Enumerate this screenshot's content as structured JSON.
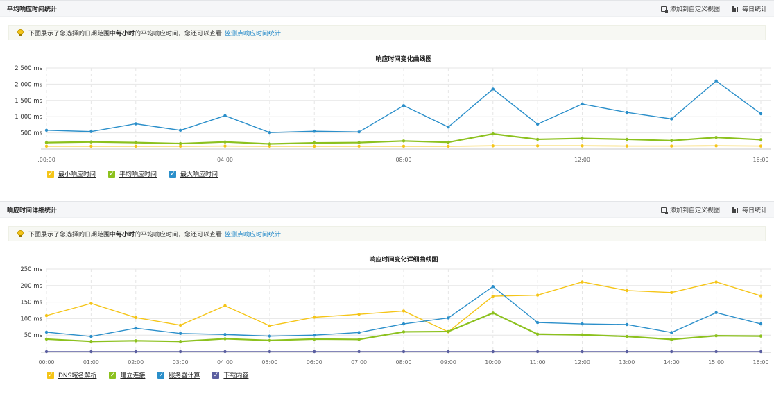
{
  "panels": [
    {
      "title": "平均响应时间统计",
      "actions": [
        "添加到自定义视图",
        "每日统计"
      ],
      "notice": {
        "prefix": "下图展示了您选择的日期范围中",
        "bold": "每小时",
        "middle": "的平均响应时间，您还可以查看",
        "link": "监测点响应时间统计"
      }
    },
    {
      "title": "响应时间详细统计",
      "actions": [
        "添加到自定义视图",
        "每日统计"
      ],
      "notice": {
        "prefix": "下图展示了您选择的日期范围中",
        "bold": "每小时",
        "middle": "的平均响应时间，您还可以查看",
        "link": "监测点响应时间统计"
      }
    }
  ],
  "chart_data": [
    {
      "type": "line",
      "title": "响应时间变化曲线图",
      "x": [
        "00:00",
        "01:00",
        "02:00",
        "03:00",
        "04:00",
        "05:00",
        "06:00",
        "07:00",
        "08:00",
        "09:00",
        "10:00",
        "11:00",
        "12:00",
        "13:00",
        "14:00",
        "15:00",
        "16:00"
      ],
      "x_tick_labels": [
        ".00:00",
        "04:00",
        "08:00",
        "12:00",
        "16:00"
      ],
      "x_tick_indices": [
        0,
        4,
        8,
        12,
        16
      ],
      "y_tick_labels": [
        "2 500 ms",
        "2 000 ms",
        "1 500 ms",
        "1 000 ms",
        "500 ms"
      ],
      "ylim": [
        0,
        2500
      ],
      "y_ticks": [
        500,
        1000,
        1500,
        2000,
        2500
      ],
      "grid": true,
      "legend_position": "bottom-left",
      "series": [
        {
          "name": "最小响应时间",
          "color": "#f5c518",
          "values": [
            90,
            90,
            90,
            90,
            95,
            90,
            90,
            90,
            90,
            90,
            100,
            100,
            100,
            95,
            95,
            100,
            95
          ]
        },
        {
          "name": "平均响应时间",
          "color": "#8cc11e",
          "values": [
            200,
            220,
            200,
            170,
            220,
            160,
            190,
            200,
            250,
            210,
            470,
            300,
            330,
            300,
            260,
            360,
            290
          ]
        },
        {
          "name": "最大响应时间",
          "color": "#2b8fca",
          "values": [
            580,
            540,
            780,
            580,
            1030,
            510,
            550,
            530,
            1340,
            680,
            1850,
            770,
            1390,
            1130,
            930,
            2100,
            1090
          ]
        }
      ]
    },
    {
      "type": "line",
      "title": "响应时间变化详细曲线图",
      "x": [
        "00:00",
        "01:00",
        "02:00",
        "03:00",
        "04:00",
        "05:00",
        "06:00",
        "07:00",
        "08:00",
        "09:00",
        "10:00",
        "11:00",
        "12:00",
        "13:00",
        "14:00",
        "15:00",
        "16:00"
      ],
      "x_tick_labels": [
        "00:00",
        "01:00",
        "02:00",
        "03:00",
        "04:00",
        "05:00",
        "06:00",
        "07:00",
        "08:00",
        "09:00",
        "10:00",
        "11:00",
        "12:00",
        "13:00",
        "14:00",
        "15:00",
        "16:00"
      ],
      "x_tick_indices": [
        0,
        1,
        2,
        3,
        4,
        5,
        6,
        7,
        8,
        9,
        10,
        11,
        12,
        13,
        14,
        15,
        16
      ],
      "y_tick_labels": [
        "250 ms",
        "200 ms",
        "150 ms",
        "100 ms",
        "50 ms"
      ],
      "ylim": [
        0,
        250
      ],
      "y_ticks": [
        50,
        100,
        150,
        200,
        250
      ],
      "grid": true,
      "legend_position": "bottom-left",
      "series": [
        {
          "name": "DNS域名解析",
          "color": "#f5c518",
          "values": [
            109,
            146,
            103,
            80,
            139,
            78,
            104,
            113,
            123,
            60,
            168,
            171,
            211,
            185,
            179,
            211,
            169
          ]
        },
        {
          "name": "建立连接",
          "color": "#8cc11e",
          "values": [
            38,
            31,
            33,
            31,
            39,
            34,
            38,
            37,
            60,
            61,
            117,
            53,
            51,
            46,
            37,
            48,
            47
          ]
        },
        {
          "name": "服务器计算",
          "color": "#2b8fca",
          "values": [
            59,
            46,
            71,
            55,
            52,
            47,
            50,
            58,
            84,
            102,
            197,
            88,
            84,
            82,
            58,
            118,
            84
          ]
        },
        {
          "name": "下载内容",
          "color": "#5b5fa0",
          "values": [
            0,
            0,
            0,
            0,
            0,
            0,
            0,
            0,
            0,
            0,
            0,
            0,
            0,
            0,
            0,
            0,
            0
          ]
        }
      ]
    }
  ]
}
